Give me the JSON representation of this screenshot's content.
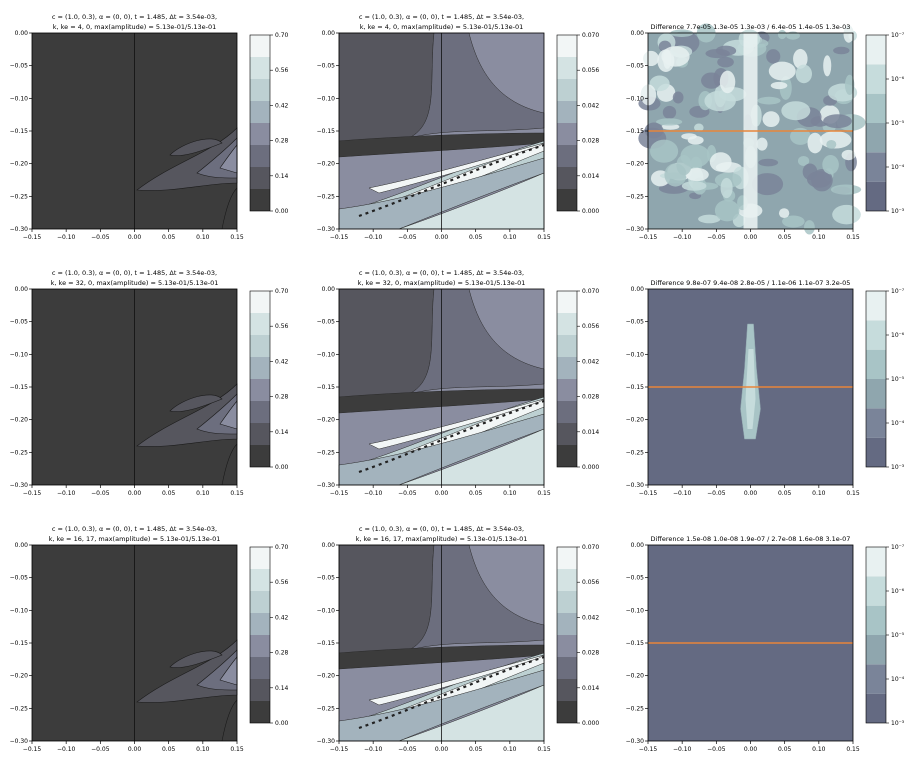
{
  "figure": {
    "rows": [
      {
        "ke_label": "k, ke = 4, 0",
        "diff_title": "Difference 7.7e-05 1.3e-05 1.3e-03 / 6.4e-05 1.4e-05 1.3e-03",
        "diff_pattern": "strong"
      },
      {
        "ke_label": "k, ke = 32, 0",
        "diff_title": "Difference 9.8e-07 9.4e-08 2.8e-05 / 1.1e-06 1.1e-07 3.2e-05",
        "diff_pattern": "center"
      },
      {
        "ke_label": "k, ke = 16, 17",
        "diff_title": "Difference 1.5e-08 1.0e-08 1.9e-07 / 2.7e-08 1.6e-08 3.1e-07",
        "diff_pattern": "none"
      }
    ],
    "title_line1": "c = (1.0, 0.3), α = (0, 0), t = 1.485, Δt = 3.54e-03,",
    "title_line2_suffix": ", max(amplitude) = 5.13e-01/5.13e-01",
    "x_ticks": [
      "−0.15",
      "−0.10",
      "−0.05",
      "0.00",
      "0.05",
      "0.10",
      "0.15"
    ],
    "y_ticks": [
      "0.00",
      "−0.05",
      "−0.10",
      "−0.15",
      "−0.20",
      "−0.25",
      "−0.30"
    ],
    "cbar_left_ticks": [
      "0.70",
      "0.56",
      "0.42",
      "0.28",
      "0.14",
      "0.00"
    ],
    "cbar_mid_ticks": [
      "0.070",
      "0.056",
      "0.042",
      "0.028",
      "0.014",
      "0.000"
    ],
    "cbar_diff_ticks": [
      "10⁻³",
      "10⁻⁴",
      "10⁻⁵",
      "10⁻⁶",
      "10⁻⁷"
    ],
    "palette_bone": [
      "#3c3c3c",
      "#56565e",
      "#6c6e7e",
      "#8a8da0",
      "#a3b3bd",
      "#bdd0d2",
      "#d4e3e3",
      "#f2f6f6"
    ],
    "palette_diff": [
      "#646a82",
      "#7a8499",
      "#8fa6ae",
      "#a8c4c6",
      "#c6dcdc",
      "#e8f1f1"
    ],
    "orange_line_color": "#e8853a"
  },
  "chart_data": [
    {
      "type": "heatmap",
      "panel": "left",
      "xlim": [
        -0.15,
        0.15
      ],
      "ylim": [
        -0.3,
        0.0
      ],
      "colorbar": [
        0.0,
        0.14,
        0.28,
        0.42,
        0.56,
        0.7
      ],
      "description_features": [
        "vertical line at x=0",
        "lobes near lower right"
      ]
    },
    {
      "type": "heatmap",
      "panel": "middle",
      "xlim": [
        -0.15,
        0.15
      ],
      "ylim": [
        -0.3,
        0.0
      ],
      "colorbar": [
        0.0,
        0.014,
        0.028,
        0.042,
        0.056,
        0.07
      ]
    },
    {
      "type": "heatmap",
      "panel": "right",
      "xlim": [
        -0.15,
        0.15
      ],
      "ylim": [
        -0.3,
        0.0
      ],
      "colorbar_log": [
        1e-07,
        1e-06,
        1e-05,
        0.0001,
        0.001
      ],
      "horizontal_line_y": -0.15
    }
  ]
}
